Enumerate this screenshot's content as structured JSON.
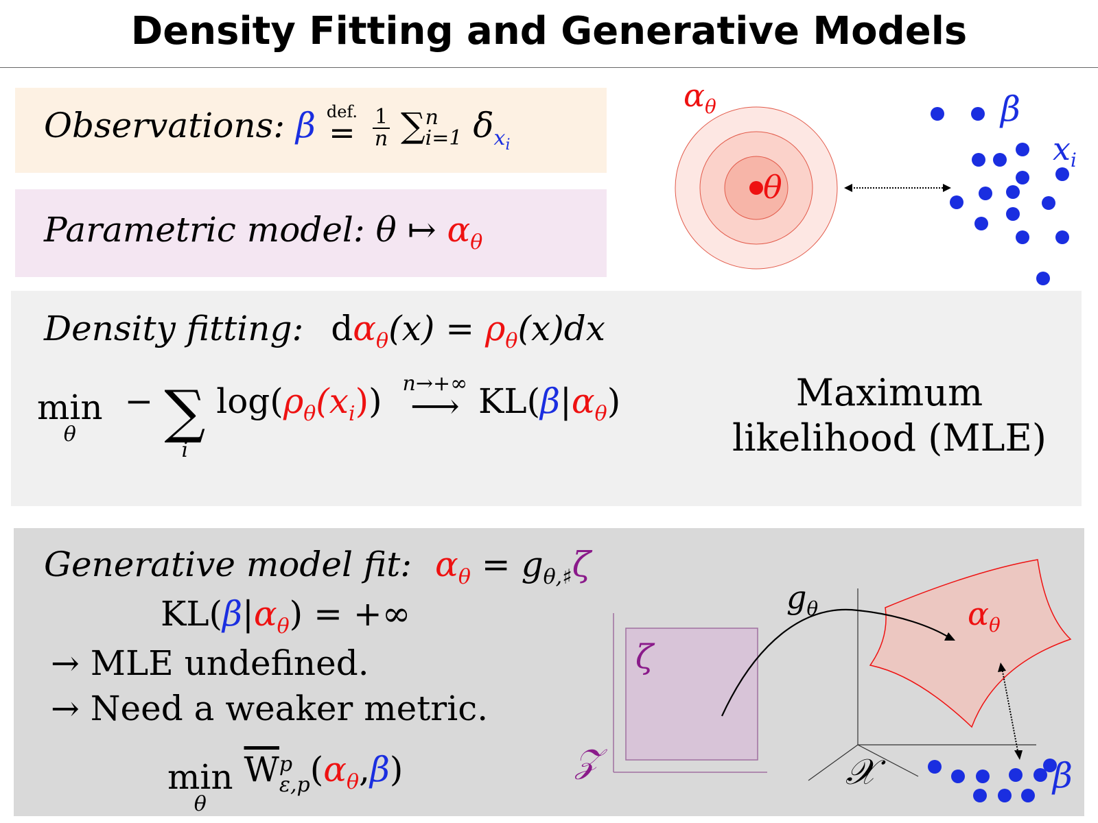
{
  "title": "Density Fitting and Generative Models",
  "colors": {
    "red": "#ee1111",
    "blue": "#1a2ee0",
    "purple": "#8a1a8a"
  },
  "observations": {
    "label": "Observations:",
    "beta": "β",
    "def": "def.",
    "eq": "=",
    "frac_num": "1",
    "frac_den": "n",
    "sum": "∑",
    "sum_sup": "n",
    "sum_sub": "i=1",
    "delta": "δ",
    "delta_sub": "x",
    "delta_subsub": "i"
  },
  "parametric": {
    "label": "Parametric model:",
    "theta": "θ",
    "mapsto": "↦",
    "alpha": "α",
    "alpha_sub": "θ"
  },
  "density": {
    "label": "Density fitting:",
    "d": "d",
    "alpha": "α",
    "alpha_sub": "θ",
    "x_paren": "(x) =",
    "rho": "ρ",
    "rho_sub": "θ",
    "tail": "(x)dx"
  },
  "mle_eq": {
    "min": "min",
    "min_sub": "θ",
    "minus": "−",
    "sum": "∑",
    "sum_sub": "i",
    "log_open": "log(",
    "rho": "ρ",
    "rho_sub": "θ",
    "xi": "(x",
    "xi_sub": "i",
    "xi_close": ")",
    "log_close": ")",
    "arrow_label": "n→+∞",
    "arrow": "⟶",
    "kl": "KL(",
    "beta": "β",
    "bar": "|",
    "alpha": "α",
    "alpha_sub": "θ",
    "kl_close": ")",
    "caption_line1": "Maximum",
    "caption_line2": "likelihood (MLE)"
  },
  "generative": {
    "label": "Generative model fit:",
    "alpha": "α",
    "alpha_sub": "θ",
    "eq": "=",
    "g": "g",
    "g_sub": "θ,♯",
    "zeta": "ζ",
    "kl_line": {
      "kl": "KL(",
      "beta": "β",
      "bar": "|",
      "alpha": "α",
      "alpha_sub": "θ",
      "rest": ") = +∞"
    },
    "bullet1": "→ MLE undefined.",
    "bullet2": "→ Need a weaker metric.",
    "wmin": {
      "min": "min",
      "min_sub": "θ",
      "w": "W",
      "w_sup": "p",
      "w_sub": "ε,p",
      "open": "(",
      "alpha": "α",
      "alpha_sub": "θ",
      "comma": ",",
      "beta": "β",
      "close": ")"
    }
  },
  "diagram_top": {
    "alpha_label": "α",
    "alpha_sub": "θ",
    "theta_label": "θ",
    "beta_label": "β",
    "xi_label": "x",
    "xi_sub": "i"
  },
  "diagram_bottom": {
    "g_label": "g",
    "g_sub": "θ",
    "alpha_label": "α",
    "alpha_sub": "θ",
    "zeta_label": "ζ",
    "z_label": "𝒵",
    "x_label": "𝒳",
    "beta_label": "β"
  }
}
